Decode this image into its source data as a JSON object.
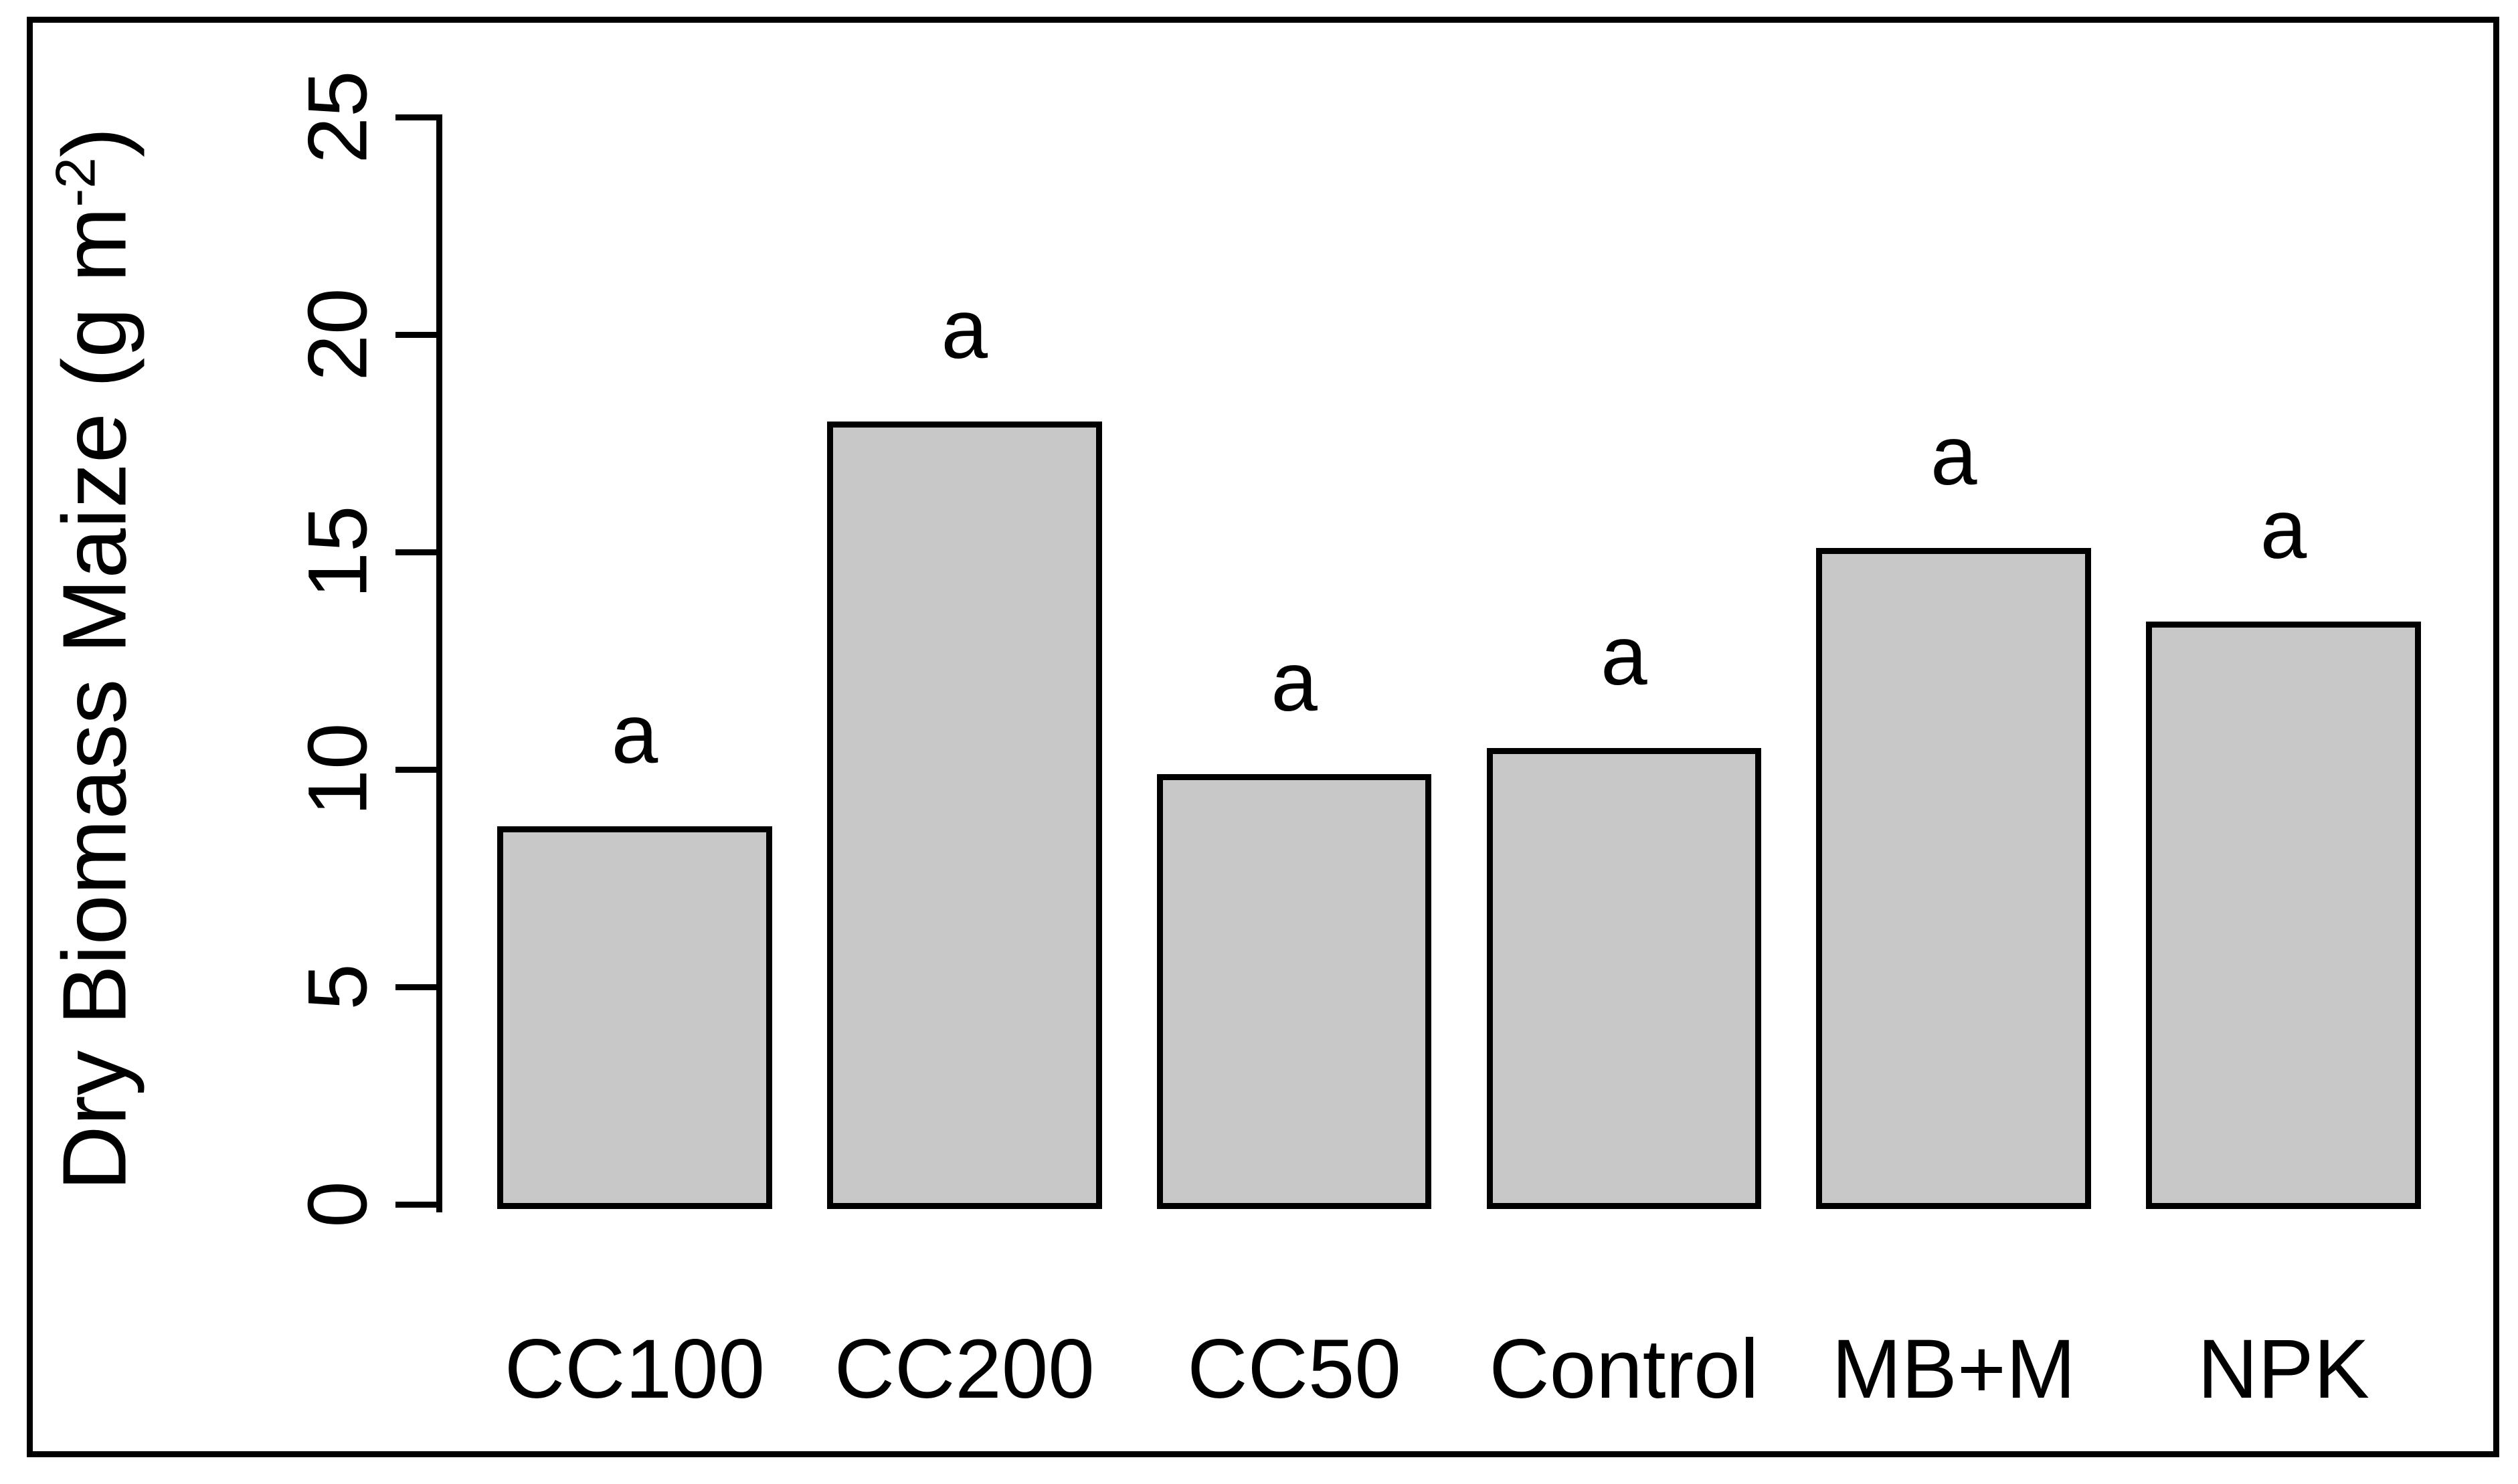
{
  "figure": {
    "background_color": "#ffffff",
    "frame_color": "#000000",
    "text_color": "#000000"
  },
  "chart_data": {
    "type": "bar",
    "title": "",
    "xlabel": "",
    "ylabel": "Dry Biomass Maize (g m⁻²)",
    "ylabel_parts": {
      "prefix": "Dry Biomass Maize (g m",
      "superscript": "-2",
      "suffix": ")"
    },
    "categories": [
      "CC100",
      "CC200",
      "CC50",
      "Control",
      "MB+M",
      "NPK"
    ],
    "values": [
      8.7,
      18.0,
      9.9,
      10.5,
      15.1,
      13.4
    ],
    "significance_labels": [
      "a",
      "a",
      "a",
      "a",
      "a",
      "a"
    ],
    "ylim": [
      0,
      25
    ],
    "yticks": [
      0,
      5,
      10,
      15,
      20,
      25
    ],
    "grid": false,
    "legend_position": "none",
    "bar_fill_color": "#c8c8c8",
    "bar_border_color": "#000000",
    "axis_color": "#000000"
  }
}
